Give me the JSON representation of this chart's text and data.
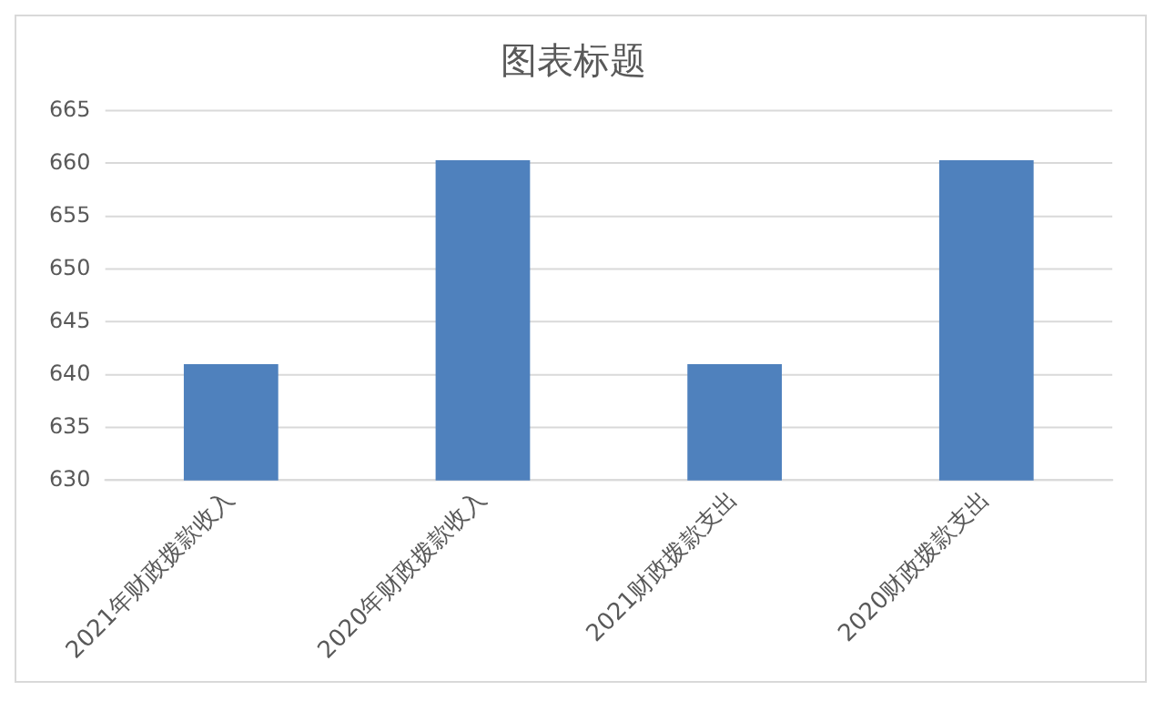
{
  "chart_data": {
    "type": "bar",
    "title": "图表标题",
    "categories": [
      "2021年财政拨款收入",
      "2020年财政拨款收入",
      "2021财政拨款支出",
      "2020财政拨款支出"
    ],
    "values": [
      641,
      660.3,
      641,
      660.3
    ],
    "color": "#4f81bd",
    "ylim": [
      630,
      665
    ],
    "yticks": [
      630,
      635,
      640,
      645,
      650,
      655,
      660,
      665
    ],
    "grid": "y",
    "legend": false
  }
}
